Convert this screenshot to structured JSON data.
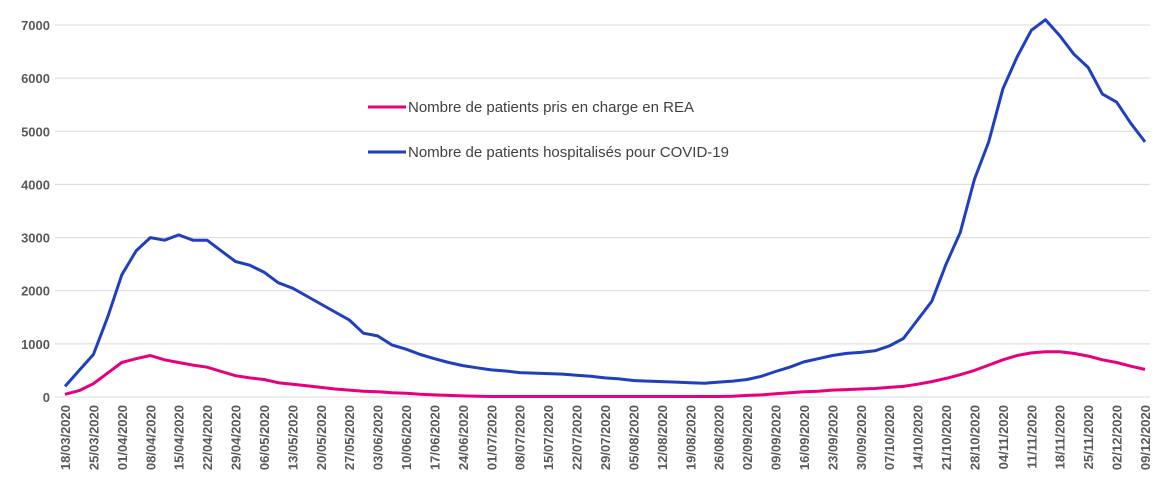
{
  "chart_data": {
    "type": "line",
    "categories": [
      "18/03/2020",
      null,
      "25/03/2020",
      null,
      "01/04/2020",
      null,
      "08/04/2020",
      null,
      "15/04/2020",
      null,
      "22/04/2020",
      null,
      "29/04/2020",
      null,
      "06/05/2020",
      null,
      "13/05/2020",
      null,
      "20/05/2020",
      null,
      "27/05/2020",
      null,
      "03/06/2020",
      null,
      "10/06/2020",
      null,
      "17/06/2020",
      null,
      "24/06/2020",
      null,
      "01/07/2020",
      null,
      "08/07/2020",
      null,
      "15/07/2020",
      null,
      "22/07/2020",
      null,
      "29/07/2020",
      null,
      "05/08/2020",
      null,
      "12/08/2020",
      null,
      "19/08/2020",
      null,
      "26/08/2020",
      null,
      "02/09/2020",
      null,
      "09/09/2020",
      null,
      "16/09/2020",
      null,
      "23/09/2020",
      null,
      "30/09/2020",
      null,
      "07/10/2020",
      null,
      "14/10/2020",
      null,
      "21/10/2020",
      null,
      "28/10/2020",
      null,
      "04/11/2020",
      null,
      "11/11/2020",
      null,
      "18/11/2020",
      null,
      "25/11/2020",
      null,
      "02/12/2020",
      null,
      "09/12/2020"
    ],
    "series": [
      {
        "name": "Nombre de patients pris en charge en REA",
        "color": "#e6007e",
        "values": [
          50,
          120,
          250,
          450,
          650,
          720,
          780,
          700,
          650,
          600,
          560,
          480,
          400,
          360,
          330,
          270,
          240,
          210,
          180,
          150,
          130,
          110,
          100,
          80,
          70,
          50,
          40,
          30,
          20,
          15,
          10,
          10,
          10,
          10,
          10,
          10,
          10,
          10,
          10,
          10,
          10,
          10,
          10,
          10,
          10,
          10,
          10,
          15,
          30,
          40,
          60,
          80,
          100,
          110,
          130,
          140,
          150,
          160,
          180,
          200,
          240,
          290,
          350,
          420,
          500,
          600,
          700,
          780,
          830,
          850,
          850,
          820,
          770,
          700,
          650,
          580,
          520
        ]
      },
      {
        "name": "Nombre de patients hospitalisés pour COVID-19",
        "color": "#1f3fbf",
        "values": [
          200,
          500,
          800,
          1500,
          2300,
          2750,
          3000,
          2950,
          3050,
          2950,
          2950,
          2750,
          2550,
          2480,
          2350,
          2150,
          2050,
          1900,
          1750,
          1600,
          1450,
          1200,
          1150,
          980,
          900,
          800,
          720,
          650,
          590,
          550,
          510,
          490,
          460,
          450,
          440,
          430,
          410,
          390,
          360,
          340,
          310,
          300,
          290,
          280,
          270,
          260,
          280,
          300,
          330,
          390,
          480,
          560,
          660,
          720,
          780,
          820,
          840,
          870,
          960,
          1100,
          1450,
          1800,
          2500,
          3100,
          4100,
          4800,
          5800,
          6400,
          6900,
          7100,
          6800,
          6450,
          6200,
          5700,
          5550,
          5150,
          4800
        ]
      }
    ],
    "ylim": [
      0,
      7000
    ],
    "yticks": [
      0,
      1000,
      2000,
      3000,
      4000,
      5000,
      6000,
      7000
    ],
    "grid": true
  }
}
